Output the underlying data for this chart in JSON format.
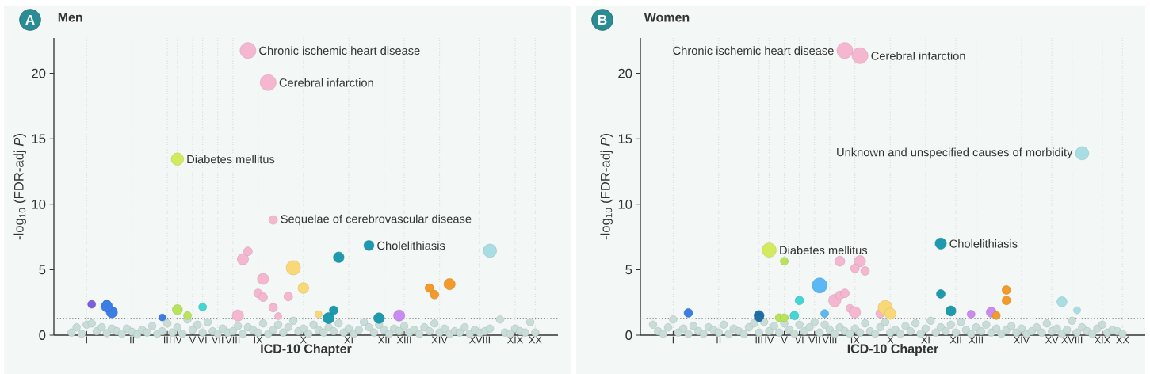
{
  "chart_data": [
    {
      "type": "bubble",
      "title": "Men",
      "xlabel": "ICD-10 Chapter",
      "ylabel": "-log$_{10}$ (FDR-adj *P*)",
      "marker": "circle",
      "grid": "x",
      "categories": [
        null,
        null,
        null,
        null,
        null,
        null,
        "I",
        null,
        null,
        null,
        null,
        null,
        null,
        null,
        null,
        "II",
        null,
        null,
        null,
        null,
        null,
        null,
        "III",
        null,
        "IV",
        null,
        null,
        "V",
        null,
        "VI",
        null,
        null,
        "VII",
        null,
        null,
        "VIII",
        null,
        null,
        null,
        null,
        "IX",
        null,
        null,
        null,
        null,
        null,
        null,
        null,
        null,
        "X",
        null,
        null,
        null,
        null,
        null,
        null,
        null,
        null,
        "XI",
        null,
        null,
        null,
        null,
        null,
        null,
        "XII",
        null,
        null,
        null,
        "XIII",
        null,
        null,
        null,
        null,
        null,
        null,
        "XIV",
        null,
        null,
        null,
        null,
        null,
        null,
        null,
        "XVIII",
        null,
        null,
        null,
        null,
        null,
        null,
        "XIX",
        null,
        null,
        null,
        "XX",
        null,
        null,
        null,
        null
      ],
      "ylim": [
        0,
        22.7
      ],
      "yticks": [
        0,
        5,
        10,
        15,
        20
      ],
      "series": [
        {
          "type": "scatter",
          "color": "#c9ddd8",
          "values": [
            null,
            null,
            null,
            0.2,
            0.6,
            0.1,
            0.8,
            0.9,
            0.3,
            0.6,
            0.15,
            0.5,
            0.3,
            0.1,
            0.5,
            0.25,
            0.05,
            0.4,
            0.2,
            0.7,
            0.1,
            0.3,
            0.9,
            0.2,
            0.6,
            0.1,
            1.2,
            0.4,
            0.8,
            0.2,
            1.0,
            0.3,
            0.1,
            0.5,
            0.2,
            0.3,
            0.7,
            0.1,
            0.6,
            0.4,
            0.2,
            0.9,
            0.1,
            0.4,
            0.8,
            0.2,
            0.6,
            1.1,
            0.3,
            0.5,
            0.1,
            0.8,
            0.4,
            0.2,
            0.6,
            0.3,
            0.9,
            0.2,
            0.5,
            0.1,
            0.4,
            1.0,
            0.6,
            0.2,
            0.8,
            0.4,
            0.1,
            0.5,
            0.3,
            0.7,
            0.2,
            0.4,
            0.1,
            0.6,
            0.3,
            0.9,
            0.2,
            0.5,
            0.1,
            0.3,
            0.2,
            0.6,
            0.1,
            0.4,
            0.2,
            0.3,
            0.5,
            null,
            1.2,
            0.2,
            0.1,
            0.5,
            0.3,
            0.2,
            1.0,
            0.2,
            null,
            null,
            null,
            null
          ]
        },
        {
          "values": [
            null,
            null,
            null,
            null,
            null,
            null,
            null,
            2.36,
            null,
            null,
            2.4,
            1.75,
            null,
            null,
            null,
            null,
            null,
            null,
            null,
            null,
            null,
            1.35,
            null,
            null,
            13.45,
            null,
            1.5,
            null,
            null,
            2.15,
            null,
            null,
            null,
            null,
            null,
            null,
            1.5,
            5.8,
            21.75,
            null,
            3.2,
            4.3,
            19.3,
            2.1,
            1.45,
            null,
            2.95,
            5.15,
            null,
            3.6,
            null,
            null,
            1.6,
            null,
            1.3,
            1.9,
            5.95,
            null,
            null,
            null,
            null,
            null,
            6.85,
            null,
            1.3,
            null,
            null,
            null,
            1.5,
            null,
            null,
            null,
            null,
            null,
            3.6,
            3.1,
            null,
            null,
            3.9,
            null,
            null,
            null,
            null,
            null,
            null,
            null,
            6.45,
            null,
            null,
            null,
            null,
            null,
            null,
            null,
            null,
            null,
            null,
            null,
            null,
            null
          ],
          "value_labels": [
            null,
            null,
            null,
            null,
            null,
            null,
            null,
            null,
            null,
            null,
            null,
            null,
            null,
            null,
            null,
            null,
            null,
            null,
            null,
            null,
            null,
            null,
            null,
            null,
            "Diabetes mellitus",
            null,
            null,
            null,
            null,
            null,
            null,
            null,
            null,
            null,
            null,
            null,
            null,
            null,
            "Chronic ischemic heart disease",
            null,
            null,
            null,
            "Cerebral infarction",
            null,
            null,
            null,
            null,
            null,
            null,
            null,
            null,
            null,
            null,
            null,
            null,
            null,
            null,
            null,
            null,
            null,
            null,
            null,
            "Cholelithiasis",
            null,
            null,
            null,
            null,
            null,
            null,
            null,
            null,
            null,
            null,
            null,
            null,
            null,
            null,
            null,
            null,
            null,
            null,
            null,
            null,
            null,
            null,
            null,
            null,
            null,
            null,
            null,
            null,
            null,
            null,
            null,
            null,
            null,
            null,
            null,
            null,
            null
          ],
          "sizes": [
            null,
            null,
            null,
            null,
            null,
            null,
            null,
            0.25,
            null,
            null,
            0.25,
            0.5,
            null,
            null,
            null,
            null,
            null,
            null,
            null,
            null,
            null,
            0.2,
            null,
            null,
            0.6,
            null,
            0.25,
            null,
            null,
            0.25,
            null,
            null,
            null,
            null,
            null,
            null,
            0.5,
            0.5,
            1,
            null,
            0.3,
            0.5,
            1,
            0.3,
            0.2,
            null,
            0.3,
            0.8,
            null,
            0.45,
            null,
            null,
            0.2,
            null,
            0.5,
            0.3,
            0.45,
            null,
            null,
            null,
            null,
            null,
            0.4,
            null,
            0.45,
            null,
            null,
            null,
            0.5,
            null,
            null,
            null,
            null,
            null,
            0.3,
            0.3,
            null,
            null,
            0.5,
            null,
            null,
            null,
            null,
            null,
            null,
            null,
            0.7,
            null,
            null,
            null,
            null,
            null,
            null,
            null,
            null,
            null,
            null,
            null,
            null,
            null
          ],
          "colors": [
            null,
            null,
            null,
            null,
            null,
            null,
            null,
            "#7b5fe0",
            null,
            null,
            "#3d7ee6",
            "#3d7ee6",
            null,
            null,
            null,
            null,
            null,
            null,
            null,
            null,
            null,
            "#3d7ee6",
            null,
            null,
            "#d4ea5e",
            null,
            "#b8e35a",
            null,
            null,
            "#45d6d3",
            null,
            null,
            null,
            null,
            null,
            null,
            "#f5b6cf",
            "#f5b6cf",
            "#f5b6cf",
            null,
            "#f5b6cf",
            "#f5b6cf",
            "#f5b6cf",
            "#f5b6cf",
            "#f5b6cf",
            null,
            "#f5b6cf",
            "#f9d878",
            null,
            "#f9d878",
            null,
            null,
            "#f9d878",
            null,
            "#1e9aae",
            "#1e9aae",
            "#1e9aae",
            null,
            null,
            null,
            null,
            null,
            "#1e9aae",
            null,
            "#1e9aae",
            null,
            null,
            null,
            "#c98bf2",
            null,
            null,
            null,
            null,
            null,
            "#f39a2b",
            "#f39a2b",
            null,
            null,
            "#f39a2b",
            null,
            null,
            null,
            null,
            null,
            null,
            null,
            "#a8dde4",
            null,
            null,
            null,
            null,
            null,
            null,
            null,
            null,
            null,
            null,
            null,
            null,
            null
          ]
        },
        {
          "values": [
            null,
            null,
            null,
            null,
            null,
            null,
            null,
            null,
            null,
            null,
            2.2,
            null,
            null,
            null,
            null,
            null,
            null,
            null,
            null,
            null,
            null,
            null,
            null,
            null,
            1.95,
            null,
            null,
            null,
            null,
            null,
            null,
            null,
            null,
            null,
            null,
            null,
            null,
            null,
            6.4,
            null,
            null,
            2.9,
            null,
            8.8,
            null,
            null,
            null,
            null,
            null,
            null,
            null,
            null,
            null,
            null,
            null,
            null,
            null,
            null,
            null,
            null,
            null,
            null,
            null,
            null,
            null,
            null,
            null,
            null,
            null,
            null,
            null,
            null,
            null,
            null,
            null,
            null,
            null,
            null,
            null,
            null,
            null,
            null,
            null,
            null,
            null,
            null,
            null,
            null,
            null,
            null,
            null,
            null,
            null,
            null,
            null,
            null,
            null,
            null,
            null,
            null
          ],
          "value_labels": [
            null,
            null,
            null,
            null,
            null,
            null,
            null,
            null,
            null,
            null,
            null,
            null,
            null,
            null,
            null,
            null,
            null,
            null,
            null,
            null,
            null,
            null,
            null,
            null,
            null,
            null,
            null,
            null,
            null,
            null,
            null,
            null,
            null,
            null,
            null,
            null,
            null,
            null,
            null,
            null,
            null,
            null,
            null,
            "Sequelae of cerebrovascular disease",
            null,
            null,
            null,
            null,
            null,
            null,
            null,
            null,
            null,
            null,
            null,
            null,
            null,
            null,
            null,
            null,
            null,
            null,
            null,
            null,
            null,
            null,
            null,
            null,
            null,
            null,
            null,
            null,
            null,
            null,
            null,
            null,
            null,
            null,
            null,
            null,
            null,
            null,
            null,
            null,
            null,
            null,
            null,
            null,
            null,
            null,
            null,
            null,
            null,
            null,
            null,
            null,
            null,
            null,
            null,
            null
          ],
          "sizes": [
            null,
            null,
            null,
            null,
            null,
            null,
            null,
            null,
            null,
            null,
            0.5,
            null,
            null,
            null,
            null,
            null,
            null,
            null,
            null,
            null,
            null,
            null,
            null,
            null,
            0.4,
            null,
            null,
            null,
            null,
            null,
            null,
            null,
            null,
            null,
            null,
            null,
            null,
            null,
            0.3,
            null,
            null,
            0.3,
            null,
            0.3,
            null,
            null,
            null,
            null,
            null,
            null,
            null,
            null,
            null,
            null,
            null,
            null,
            null,
            null,
            null,
            null,
            null,
            null,
            null,
            null,
            null,
            null,
            null,
            null,
            null,
            null,
            null,
            null,
            null,
            null,
            null,
            null,
            null,
            null,
            null,
            null,
            null,
            null,
            null,
            null,
            null,
            null,
            null,
            null,
            null,
            null,
            null,
            null,
            null,
            null,
            null,
            null,
            null,
            null,
            null,
            null
          ],
          "colors": [
            null,
            null,
            null,
            null,
            null,
            null,
            null,
            null,
            null,
            null,
            "#3d7ee6",
            null,
            null,
            null,
            null,
            null,
            null,
            null,
            null,
            null,
            null,
            null,
            null,
            null,
            "#b8e35a",
            null,
            null,
            null,
            null,
            null,
            null,
            null,
            null,
            null,
            null,
            null,
            null,
            null,
            "#f5b6cf",
            null,
            null,
            "#f5b6cf",
            null,
            "#f5b6cf",
            null,
            null,
            null,
            null,
            null,
            null,
            null,
            null,
            null,
            null,
            null,
            null,
            null,
            null,
            null,
            null,
            null,
            null,
            null,
            null,
            null,
            null,
            null,
            null,
            null,
            null,
            null,
            null,
            null,
            null,
            null,
            null,
            null,
            null,
            null,
            null,
            null,
            null,
            null,
            null,
            null,
            null,
            null,
            null,
            null,
            null,
            null,
            null,
            null,
            null,
            null,
            null,
            null,
            null,
            null,
            null
          ]
        }
      ],
      "ref_lines": [
        {
          "axis": "y",
          "value": 1.3,
          "line_style": "dotted",
          "color": "#888888"
        }
      ],
      "annotations": [
        "A"
      ]
    },
    {
      "type": "bubble",
      "title": "Women",
      "xlabel": "ICD-10 Chapter",
      "ylabel": "-log$_{10}$ (FDR-adj *P*)",
      "marker": "circle",
      "grid": "x",
      "categories": [
        null,
        null,
        null,
        null,
        null,
        null,
        "I",
        null,
        null,
        null,
        null,
        null,
        null,
        null,
        null,
        "II",
        null,
        null,
        null,
        null,
        null,
        null,
        null,
        "III",
        null,
        "IV",
        null,
        null,
        "V",
        null,
        null,
        "VI",
        null,
        null,
        "VII",
        null,
        null,
        "VIII",
        null,
        null,
        null,
        null,
        "IX",
        null,
        null,
        null,
        null,
        null,
        null,
        "X",
        null,
        null,
        null,
        null,
        null,
        null,
        "XI",
        null,
        null,
        null,
        null,
        null,
        "XII",
        null,
        null,
        null,
        "XIII",
        null,
        null,
        null,
        null,
        null,
        null,
        null,
        null,
        "XIV",
        null,
        null,
        null,
        null,
        null,
        "XV",
        null,
        null,
        null,
        "XVIII",
        null,
        null,
        null,
        null,
        null,
        "XIX",
        null,
        null,
        null,
        "XX",
        null,
        null,
        null,
        null
      ],
      "ylim": [
        0,
        22.7
      ],
      "yticks": [
        0,
        5,
        10,
        15,
        20
      ],
      "series": [
        {
          "type": "scatter",
          "color": "#c9ddd8",
          "values": [
            null,
            null,
            0.8,
            0.3,
            0.1,
            0.6,
            1.2,
            0.2,
            0.5,
            0.1,
            0.7,
            0.3,
            0.1,
            0.6,
            0.4,
            0.2,
            0.8,
            0.1,
            0.5,
            0.3,
            0.1,
            0.6,
            0.9,
            0.2,
            1.0,
            0.3,
            0.7,
            0.2,
            0.9,
            0.4,
            0.1,
            0.8,
            0.3,
            0.6,
            1.0,
            0.2,
            0.8,
            0.4,
            0.1,
            0.6,
            0.3,
            0.1,
            0.5,
            0.2,
            0.9,
            0.3,
            0.1,
            0.6,
            1.0,
            0.2,
            0.4,
            0.1,
            0.7,
            0.3,
            0.9,
            0.1,
            0.5,
            1.1,
            0.2,
            0.6,
            0.3,
            0.8,
            0.2,
            1.0,
            0.4,
            0.1,
            0.6,
            0.3,
            0.8,
            0.2,
            0.5,
            0.1,
            0.4,
            0.7,
            0.2,
            0.5,
            0.1,
            0.3,
            0.6,
            0.2,
            0.9,
            0.3,
            0.5,
            0.1,
            0.4,
            1.1,
            0.2,
            0.6,
            0.3,
            0.1,
            0.5,
            0.8,
            0.2,
            0.4,
            0.3,
            0.1,
            null,
            null,
            null,
            null
          ]
        },
        {
          "values": [
            null,
            null,
            null,
            null,
            null,
            null,
            null,
            null,
            null,
            1.7,
            null,
            null,
            null,
            null,
            null,
            null,
            null,
            null,
            null,
            null,
            null,
            null,
            null,
            1.5,
            null,
            6.5,
            null,
            1.33,
            5.65,
            null,
            1.5,
            2.65,
            null,
            null,
            null,
            3.8,
            1.65,
            null,
            2.65,
            3.05,
            3.2,
            2.05,
            1.75,
            5.65,
            4.9,
            null,
            null,
            1.65,
            2.1,
            1.65,
            null,
            null,
            null,
            null,
            null,
            null,
            null,
            null,
            null,
            7.0,
            null,
            1.85,
            null,
            null,
            null,
            1.6,
            null,
            null,
            null,
            1.75,
            1.5,
            null,
            3.45,
            null,
            null,
            null,
            null,
            null,
            null,
            null,
            null,
            null,
            null,
            2.55,
            null,
            null,
            1.9,
            13.9,
            null,
            null,
            null,
            null,
            null,
            null,
            null,
            null,
            null,
            null,
            null,
            null
          ],
          "value_labels": [
            null,
            null,
            null,
            null,
            null,
            null,
            null,
            null,
            null,
            null,
            null,
            null,
            null,
            null,
            null,
            null,
            null,
            null,
            null,
            null,
            null,
            null,
            null,
            null,
            null,
            "Diabetes mellitus",
            null,
            null,
            null,
            null,
            null,
            null,
            null,
            null,
            null,
            null,
            null,
            null,
            null,
            null,
            null,
            null,
            null,
            null,
            null,
            null,
            null,
            null,
            null,
            null,
            null,
            null,
            null,
            null,
            null,
            null,
            null,
            null,
            null,
            "Cholelithiasis",
            null,
            null,
            null,
            null,
            null,
            null,
            null,
            null,
            null,
            null,
            null,
            null,
            null,
            null,
            null,
            null,
            null,
            null,
            null,
            null,
            null,
            null,
            null,
            null,
            null,
            null,
            null,
            "Unknown and unspecified causes of morbidity",
            null,
            null,
            null,
            null,
            null,
            null,
            null,
            null,
            null,
            null,
            null,
            null
          ],
          "sizes": [
            null,
            null,
            null,
            null,
            null,
            null,
            null,
            null,
            null,
            0.3,
            null,
            null,
            null,
            null,
            null,
            null,
            null,
            null,
            null,
            null,
            null,
            null,
            null,
            0.4,
            null,
            0.8,
            null,
            0.25,
            0.25,
            null,
            0.3,
            0.3,
            null,
            null,
            null,
            0.9,
            0.25,
            null,
            0.6,
            0.3,
            0.3,
            0.25,
            0.5,
            0.5,
            0.3,
            null,
            null,
            0.3,
            0.8,
            0.5,
            null,
            null,
            null,
            null,
            null,
            null,
            null,
            null,
            null,
            0.5,
            null,
            0.4,
            null,
            null,
            null,
            0.25,
            null,
            null,
            null,
            0.4,
            0.25,
            null,
            0.3,
            null,
            null,
            null,
            null,
            null,
            null,
            null,
            null,
            null,
            null,
            0.4,
            null,
            null,
            0.2,
            0.7,
            null,
            null,
            null,
            null,
            null,
            null,
            null,
            null,
            null,
            null,
            null,
            null
          ],
          "colors": [
            null,
            null,
            null,
            null,
            null,
            null,
            null,
            null,
            null,
            "#3d7ee6",
            null,
            null,
            null,
            null,
            null,
            null,
            null,
            null,
            null,
            null,
            null,
            null,
            null,
            "#1f6fa8",
            null,
            "#d4ea5e",
            null,
            "#b8e35a",
            "#b8e35a",
            null,
            "#45d6d3",
            "#45d6d3",
            null,
            null,
            null,
            "#5cb8f5",
            "#5cb8f5",
            null,
            "#f5b6cf",
            "#f5b6cf",
            "#f5b6cf",
            "#f5b6cf",
            "#f5b6cf",
            "#f5b6cf",
            "#f5b6cf",
            null,
            null,
            "#f5b6cf",
            "#f9d878",
            "#f9d878",
            null,
            null,
            null,
            null,
            null,
            null,
            null,
            null,
            null,
            "#1e9aae",
            null,
            "#1e9aae",
            null,
            null,
            null,
            "#c98bf2",
            null,
            null,
            null,
            "#c98bf2",
            "#f39a2b",
            null,
            "#f39a2b",
            null,
            null,
            null,
            null,
            null,
            null,
            null,
            null,
            null,
            null,
            "#a8dde4",
            null,
            null,
            "#a8dde4",
            "#a8dde4",
            null,
            null,
            null,
            null,
            null,
            null,
            null,
            null,
            null,
            null,
            null,
            null
          ]
        },
        {
          "values": [
            null,
            null,
            null,
            null,
            null,
            null,
            null,
            null,
            null,
            null,
            null,
            null,
            null,
            null,
            null,
            null,
            null,
            null,
            null,
            null,
            null,
            null,
            null,
            1.33,
            null,
            null,
            null,
            null,
            1.33,
            null,
            null,
            null,
            null,
            null,
            null,
            null,
            null,
            null,
            null,
            5.65,
            21.75,
            null,
            5.1,
            21.35,
            null,
            null,
            null,
            null,
            null,
            null,
            null,
            null,
            null,
            null,
            null,
            null,
            null,
            null,
            null,
            3.15,
            null,
            null,
            null,
            null,
            null,
            null,
            null,
            null,
            null,
            null,
            null,
            null,
            2.65,
            null,
            null,
            null,
            null,
            null,
            null,
            null,
            null,
            null,
            null,
            null,
            null,
            null,
            null,
            null,
            null,
            null,
            null,
            null,
            null,
            null,
            null,
            null,
            null,
            null,
            null,
            null
          ],
          "value_labels": [
            null,
            null,
            null,
            null,
            null,
            null,
            null,
            null,
            null,
            null,
            null,
            null,
            null,
            null,
            null,
            null,
            null,
            null,
            null,
            null,
            null,
            null,
            null,
            null,
            null,
            null,
            null,
            null,
            null,
            null,
            null,
            null,
            null,
            null,
            null,
            null,
            null,
            null,
            null,
            null,
            "Chronic ischemic heart disease",
            null,
            null,
            "Cerebral infarction",
            null,
            null,
            null,
            null,
            null,
            null,
            null,
            null,
            null,
            null,
            null,
            null,
            null,
            null,
            null,
            null,
            null,
            null,
            null,
            null,
            null,
            null,
            null,
            null,
            null,
            null,
            null,
            null,
            null,
            null,
            null,
            null,
            null,
            null,
            null,
            null,
            null,
            null,
            null,
            null,
            null,
            null,
            null,
            null,
            null,
            null,
            null,
            null,
            null,
            null,
            null,
            null,
            null,
            null,
            null,
            null
          ],
          "sizes": [
            null,
            null,
            null,
            null,
            null,
            null,
            null,
            null,
            null,
            null,
            null,
            null,
            null,
            null,
            null,
            null,
            null,
            null,
            null,
            null,
            null,
            null,
            null,
            0.25,
            null,
            null,
            null,
            null,
            0.25,
            null,
            null,
            null,
            null,
            null,
            null,
            null,
            null,
            null,
            null,
            0.4,
            1,
            null,
            0.3,
            1,
            null,
            null,
            null,
            null,
            null,
            null,
            null,
            null,
            null,
            null,
            null,
            null,
            null,
            null,
            null,
            0.3,
            null,
            null,
            null,
            null,
            null,
            null,
            null,
            null,
            null,
            null,
            null,
            null,
            0.3,
            null,
            null,
            null,
            null,
            null,
            null,
            null,
            null,
            null,
            null,
            null,
            null,
            null,
            null,
            null,
            null,
            null,
            null,
            null,
            null,
            null,
            null,
            null,
            null,
            null,
            null,
            null
          ],
          "colors": [
            null,
            null,
            null,
            null,
            null,
            null,
            null,
            null,
            null,
            null,
            null,
            null,
            null,
            null,
            null,
            null,
            null,
            null,
            null,
            null,
            null,
            null,
            null,
            "#1f6fa8",
            null,
            null,
            null,
            null,
            "#b8e35a",
            null,
            null,
            null,
            null,
            null,
            null,
            null,
            null,
            null,
            null,
            "#f5b6cf",
            "#f5b6cf",
            null,
            "#f5b6cf",
            "#f5b6cf",
            null,
            null,
            null,
            null,
            null,
            null,
            null,
            null,
            null,
            null,
            null,
            null,
            null,
            null,
            null,
            "#1e9aae",
            null,
            null,
            null,
            null,
            null,
            null,
            null,
            null,
            null,
            null,
            null,
            null,
            "#f39a2b",
            null,
            null,
            null,
            null,
            null,
            null,
            null,
            null,
            null,
            null,
            null,
            null,
            null,
            null,
            null,
            null,
            null,
            null,
            null,
            null,
            null,
            null,
            null,
            null,
            null,
            null,
            null
          ]
        }
      ],
      "ref_lines": [
        {
          "axis": "y",
          "value": 1.3,
          "line_style": "dotted",
          "color": "#888888"
        }
      ],
      "annotations": [
        "B"
      ]
    }
  ]
}
